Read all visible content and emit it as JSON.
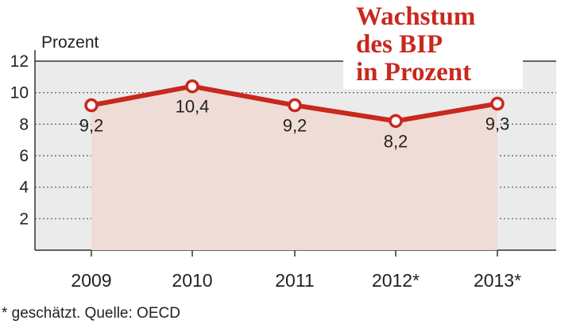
{
  "chart_data": {
    "type": "area",
    "title_lines": [
      "Wachstum",
      "des BIP",
      "in Prozent"
    ],
    "ylabel": "Prozent",
    "xlabel": "",
    "categories": [
      "2009",
      "2010",
      "2011",
      "2012*",
      "2013*"
    ],
    "series": [
      {
        "values": [
          9.2,
          10.4,
          9.2,
          8.2,
          9.3
        ]
      }
    ],
    "data_labels": [
      "9,2",
      "10,4",
      "9,2",
      "8,2",
      "9,3"
    ],
    "ylim": [
      0,
      12
    ],
    "yticks": [
      2,
      4,
      6,
      8,
      10,
      12
    ],
    "grid": true,
    "footnote": "* geschätzt. Quelle: OECD",
    "colors": {
      "line": "#c8281e",
      "area": "#f0dcd6",
      "background": "#ebebeb",
      "grid": "#555555",
      "title": "#c8281e"
    }
  }
}
